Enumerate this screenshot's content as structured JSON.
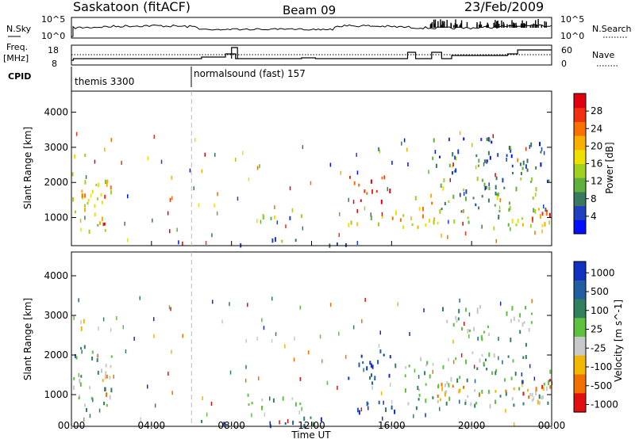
{
  "header": {
    "station": "Saskatoon (fitACF)",
    "beam": "Beam 09",
    "date": "23/Feb/2009"
  },
  "noise_panel": {
    "left_label": "N.Sky",
    "right_label": "N.Search",
    "tick_top": "10^5",
    "tick_bottom": "10^0"
  },
  "freq_panel": {
    "left_label_1": "Freq.",
    "left_label_2": "[MHz]",
    "right_label": "Nave",
    "left_tick_top": "18",
    "left_tick_bottom": "8",
    "right_tick_top": "60",
    "right_tick_bottom": "0"
  },
  "cpid": {
    "label": "CPID",
    "modes": [
      {
        "name": "themis 3300",
        "start_hour": 0
      },
      {
        "name": "normalsound (fast) 157",
        "start_hour": 6
      }
    ]
  },
  "axes": {
    "xlabel": "Time UT",
    "ylabel": "Slant Range [km]",
    "xticks": [
      "00:00",
      "04:00",
      "08:00",
      "12:00",
      "16:00",
      "20:00",
      "00:00"
    ],
    "xtick_hours": [
      0,
      4,
      8,
      12,
      16,
      20,
      24
    ],
    "yticks": [
      "1000",
      "2000",
      "3000",
      "4000"
    ],
    "ytick_values": [
      1000,
      2000,
      3000,
      4000
    ],
    "ylim": [
      200,
      4600
    ],
    "xlim": [
      0,
      24
    ],
    "marker_hour": 6
  },
  "colorbars": {
    "power": {
      "label": "Power [dB]",
      "ticks": [
        "4",
        "8",
        "12",
        "16",
        "20",
        "24",
        "28"
      ],
      "tick_values": [
        4,
        8,
        12,
        16,
        20,
        24,
        28
      ],
      "range": [
        0,
        32
      ],
      "colors": [
        "#0010ff",
        "#2040c0",
        "#3a7860",
        "#60b040",
        "#a0d020",
        "#f0e000",
        "#f8b000",
        "#f87000",
        "#f03010",
        "#e00010"
      ]
    },
    "velocity": {
      "label": "Velocity [m s^-1]",
      "ticks": [
        "1000",
        "500",
        "100",
        "25",
        "-25",
        "-100",
        "-500",
        "-1000"
      ],
      "colors": [
        "#1030c0",
        "#2060a0",
        "#308060",
        "#60c040",
        "#c8c8c8",
        "#f0b800",
        "#f07000",
        "#e01010"
      ]
    }
  },
  "chart_data": [
    {
      "type": "heatmap",
      "title": "Power",
      "xlabel": "Time UT",
      "ylabel": "Slant Range [km]",
      "colorbar_label": "Power [dB]",
      "x_units": "hours UT",
      "y_units": "km",
      "regions": [
        {
          "t0": 0.0,
          "t1": 2.0,
          "r0": 600,
          "r1": 2300,
          "level": 0.55
        },
        {
          "t0": 0.0,
          "t1": 1.0,
          "r0": 2700,
          "r1": 3000,
          "level": 0.5
        },
        {
          "t0": 1.3,
          "t1": 2.0,
          "r0": 800,
          "r1": 1400,
          "level": 0.8
        },
        {
          "t0": 0.3,
          "t1": 2.0,
          "r0": 1500,
          "r1": 1800,
          "level": 0.7
        },
        {
          "t0": 8.3,
          "t1": 11.5,
          "r0": 250,
          "r1": 450,
          "level": 0.25
        },
        {
          "t0": 9.5,
          "t1": 11.5,
          "r0": 800,
          "r1": 1150,
          "level": 0.35
        },
        {
          "t0": 12.0,
          "t1": 14.0,
          "r0": 250,
          "r1": 450,
          "level": 0.2
        },
        {
          "t0": 13.8,
          "t1": 16.0,
          "r0": 1500,
          "r1": 2200,
          "level": 0.85
        },
        {
          "t0": 13.8,
          "t1": 15.5,
          "r0": 800,
          "r1": 1200,
          "level": 0.5
        },
        {
          "t0": 16.0,
          "t1": 17.0,
          "r0": 700,
          "r1": 1300,
          "level": 0.6
        },
        {
          "t0": 17.0,
          "t1": 18.3,
          "r0": 700,
          "r1": 1800,
          "level": 0.6
        },
        {
          "t0": 18.0,
          "t1": 24.0,
          "r0": 800,
          "r1": 1100,
          "level": 0.45
        },
        {
          "t0": 18.3,
          "t1": 24.0,
          "r0": 1200,
          "r1": 2200,
          "level": 0.35
        },
        {
          "t0": 22.0,
          "t1": 24.0,
          "r0": 800,
          "r1": 1300,
          "level": 0.8
        },
        {
          "t0": 18.0,
          "t1": 23.5,
          "r0": 2300,
          "r1": 3300,
          "level": 0.2
        }
      ]
    },
    {
      "type": "heatmap",
      "title": "Velocity",
      "xlabel": "Time UT",
      "ylabel": "Slant Range [km]",
      "colorbar_label": "Velocity [m s^-1]",
      "x_units": "hours UT",
      "y_units": "km",
      "regions": [
        {
          "t0": 0.0,
          "t1": 2.0,
          "r0": 500,
          "r1": 2300,
          "level": 0.4
        },
        {
          "t0": 1.0,
          "t1": 2.0,
          "r0": 900,
          "r1": 1600,
          "level": 0.65
        },
        {
          "t0": 0.0,
          "t1": 0.9,
          "r0": 2700,
          "r1": 3000,
          "level": 0.7
        },
        {
          "t0": 5.5,
          "t1": 14.0,
          "r0": 200,
          "r1": 450,
          "level": 0.15
        },
        {
          "t0": 8.5,
          "t1": 11.5,
          "r0": 650,
          "r1": 1050,
          "level": 0.45
        },
        {
          "t0": 13.8,
          "t1": 16.3,
          "r0": 1300,
          "r1": 2200,
          "level": 0.1
        },
        {
          "t0": 13.8,
          "t1": 17.0,
          "r0": 600,
          "r1": 900,
          "level": 0.15
        },
        {
          "t0": 16.5,
          "t1": 24.0,
          "r0": 700,
          "r1": 2100,
          "level": 0.45
        },
        {
          "t0": 18.0,
          "t1": 24.0,
          "r0": 900,
          "r1": 1300,
          "level": 0.7
        },
        {
          "t0": 22.5,
          "t1": 24.0,
          "r0": 800,
          "r1": 1400,
          "level": 0.85
        },
        {
          "t0": 18.5,
          "t1": 23.0,
          "r0": 2300,
          "r1": 3300,
          "level": 0.45
        }
      ]
    }
  ]
}
